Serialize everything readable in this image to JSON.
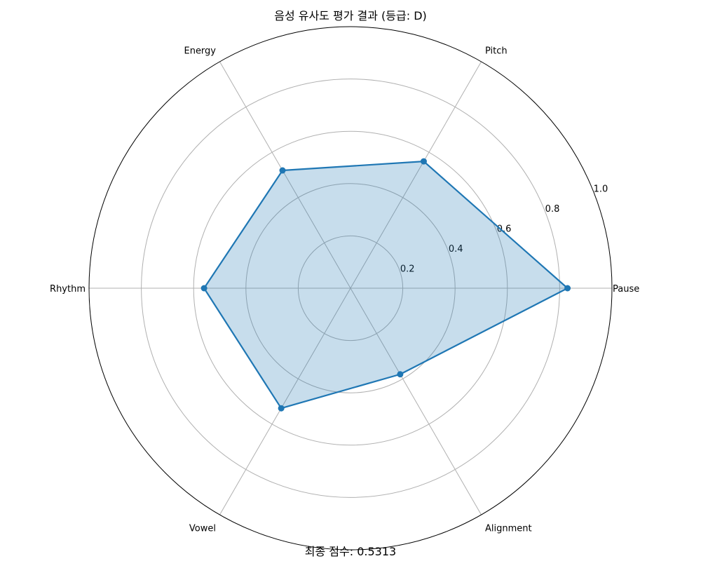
{
  "chart_data": {
    "type": "radar",
    "title": "음성 유사도 평가 결과 (등급: D)",
    "axes": [
      "Pause",
      "Pitch",
      "Energy",
      "Rhythm",
      "Vowel",
      "Alignment"
    ],
    "series": [
      {
        "values": [
          0.83,
          0.56,
          0.52,
          0.56,
          0.53,
          0.38
        ],
        "color": "#1f77b4",
        "fill_color": "#1f77b4",
        "fill_opacity": 0.25
      }
    ],
    "r_ticks": [
      "0.2",
      "0.4",
      "0.6",
      "0.8",
      "1.0"
    ],
    "r_tick_values": [
      0.2,
      0.4,
      0.6,
      0.8,
      1.0
    ],
    "rlim": [
      0,
      1.0
    ],
    "grid": true,
    "grid_color": "#b0b0b0",
    "footer": "최종 점수: 0.5313"
  }
}
